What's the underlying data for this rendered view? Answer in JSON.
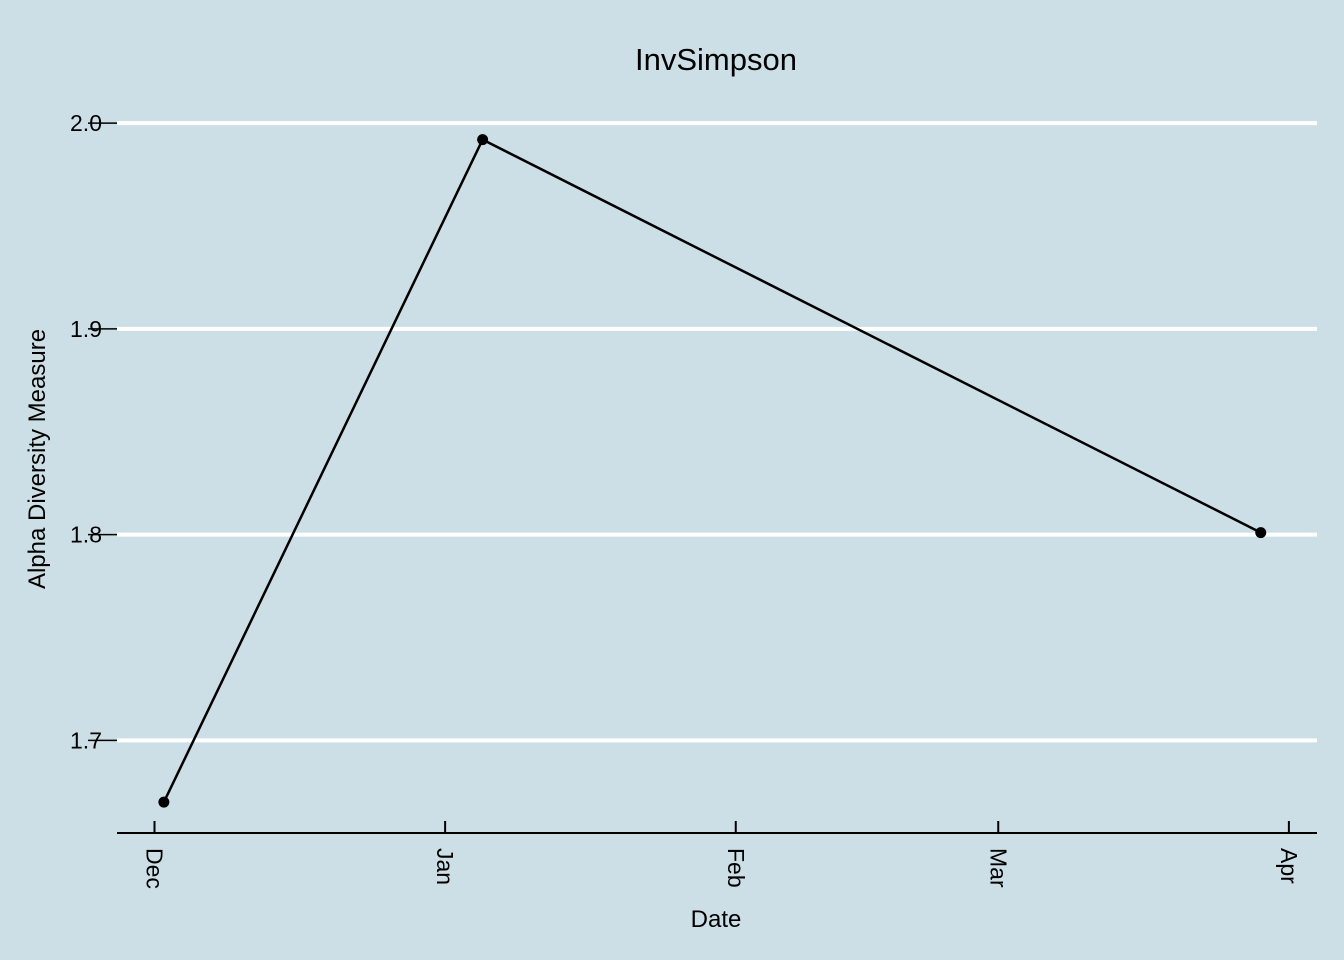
{
  "chart_data": {
    "type": "line",
    "title": "InvSimpson",
    "xlabel": "Date",
    "ylabel": "Alpha Diversity Measure",
    "x_ticks": [
      "Dec",
      "Jan",
      "Feb",
      "Mar",
      "Apr"
    ],
    "x_tick_dates": [
      "2017-12-01",
      "2018-01-01",
      "2018-02-01",
      "2018-03-01",
      "2018-04-01"
    ],
    "y_ticks": [
      "1.7",
      "1.8",
      "1.9",
      "2.0"
    ],
    "ylim": [
      1.655,
      2.02
    ],
    "xlim": [
      "2017-11-27",
      "2018-04-04"
    ],
    "grid": "horizontal",
    "background": "#cddfe6",
    "gridline_color": "#ffffff",
    "line_color": "#000000",
    "points": [
      {
        "x": "2017-12-02",
        "y": 1.67
      },
      {
        "x": "2018-01-05",
        "y": 1.992
      },
      {
        "x": "2018-03-29",
        "y": 1.801
      }
    ]
  }
}
